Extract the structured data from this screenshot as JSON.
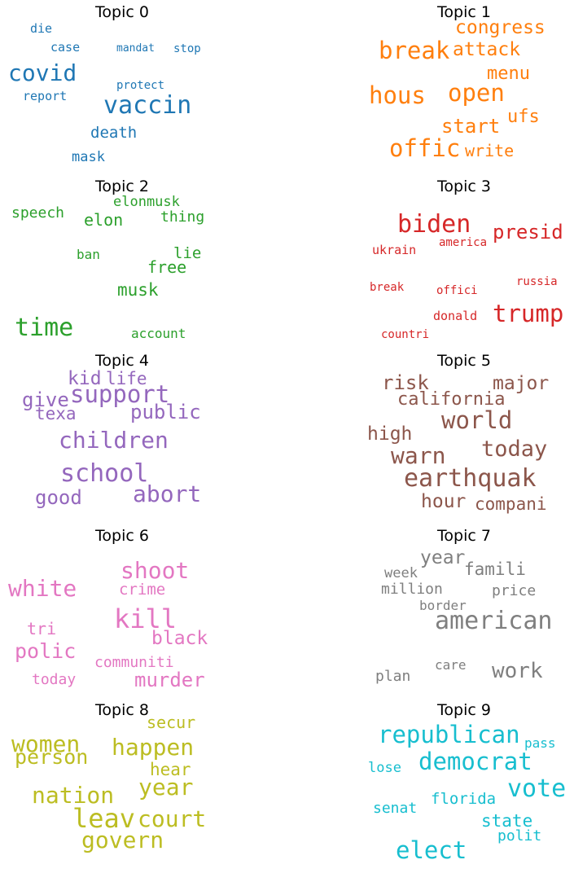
{
  "topics": [
    {
      "title": "Topic 0",
      "color": "#1f77b4",
      "words": [
        "die",
        "case",
        "mandat",
        "stop",
        "covid",
        "protect",
        "report",
        "vaccin",
        "death",
        "mask"
      ]
    },
    {
      "title": "Topic 1",
      "color": "#ff7f0e",
      "words": [
        "congress",
        "break",
        "attack",
        "menu",
        "hous",
        "open",
        "ufs",
        "start",
        "offic",
        "write"
      ]
    },
    {
      "title": "Topic 2",
      "color": "#2ca02c",
      "words": [
        "elonmusk",
        "speech",
        "elon",
        "thing",
        "ban",
        "lie",
        "free",
        "musk",
        "time",
        "account"
      ]
    },
    {
      "title": "Topic 3",
      "color": "#d62728",
      "words": [
        "biden",
        "presid",
        "ukrain",
        "america",
        "break",
        "offici",
        "russia",
        "trump",
        "donald",
        "countri"
      ]
    },
    {
      "title": "Topic 4",
      "color": "#9467bd",
      "words": [
        "kid",
        "life",
        "support",
        "give",
        "texa",
        "public",
        "children",
        "school",
        "abort",
        "good"
      ]
    },
    {
      "title": "Topic 5",
      "color": "#8c564b",
      "words": [
        "risk",
        "major",
        "california",
        "world",
        "high",
        "today",
        "warn",
        "earthquak",
        "hour",
        "compani"
      ]
    },
    {
      "title": "Topic 6",
      "color": "#e377c2",
      "words": [
        "shoot",
        "white",
        "crime",
        "kill",
        "tri",
        "black",
        "polic",
        "communiti",
        "today",
        "murder"
      ]
    },
    {
      "title": "Topic 7",
      "color": "#7f7f7f",
      "words": [
        "year",
        "week",
        "famili",
        "million",
        "price",
        "border",
        "american",
        "care",
        "work",
        "plan"
      ]
    },
    {
      "title": "Topic 8",
      "color": "#bcbd22",
      "words": [
        "secur",
        "women",
        "person",
        "happen",
        "hear",
        "year",
        "nation",
        "leav",
        "court",
        "govern"
      ]
    },
    {
      "title": "Topic 9",
      "color": "#17becf",
      "words": [
        "republican",
        "pass",
        "lose",
        "democrat",
        "vote",
        "florida",
        "senat",
        "state",
        "polit",
        "elect"
      ]
    }
  ]
}
